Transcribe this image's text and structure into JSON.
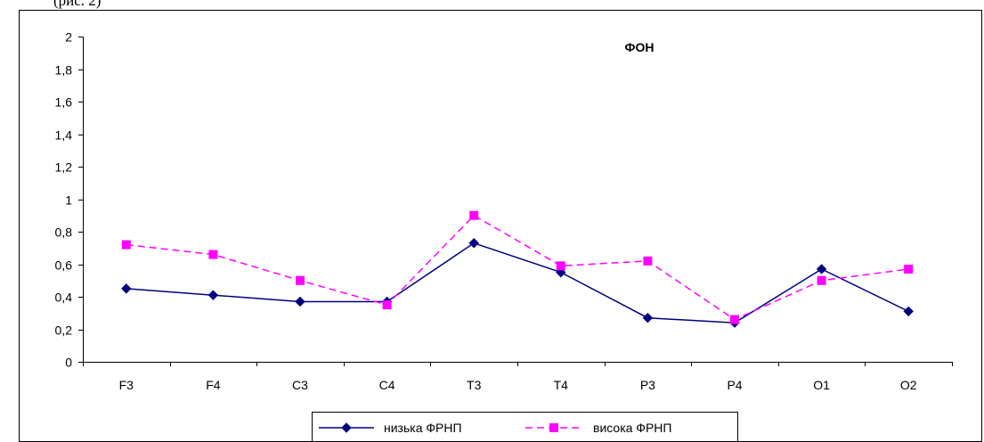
{
  "page": {
    "caption": "(рис. 2)"
  },
  "chart_data": {
    "type": "line",
    "title": "ФОН",
    "xlabel": "",
    "ylabel": "",
    "categories": [
      "F3",
      "F4",
      "C3",
      "C4",
      "T3",
      "T4",
      "P3",
      "P4",
      "O1",
      "O2"
    ],
    "ylim": [
      0,
      2
    ],
    "yticks": [
      0,
      0.2,
      0.4,
      0.6,
      0.8,
      1,
      1.2,
      1.4,
      1.6,
      1.8,
      2
    ],
    "ytick_labels": [
      "0",
      "0,2",
      "0,4",
      "0,6",
      "0,8",
      "1",
      "1,2",
      "1,4",
      "1,6",
      "1,8",
      "2"
    ],
    "grid": false,
    "legend_position": "bottom-center",
    "series": [
      {
        "name": "низька ФРНП",
        "values": [
          0.45,
          0.41,
          0.37,
          0.37,
          0.73,
          0.55,
          0.27,
          0.24,
          0.57,
          0.31
        ],
        "color": "#000080",
        "marker": "diamond",
        "line_style": "solid"
      },
      {
        "name": "висока ФРНП",
        "values": [
          0.72,
          0.66,
          0.5,
          0.35,
          0.9,
          0.59,
          0.62,
          0.26,
          0.5,
          0.57
        ],
        "color": "#FF00FF",
        "marker": "square",
        "line_style": "dashed"
      }
    ]
  }
}
